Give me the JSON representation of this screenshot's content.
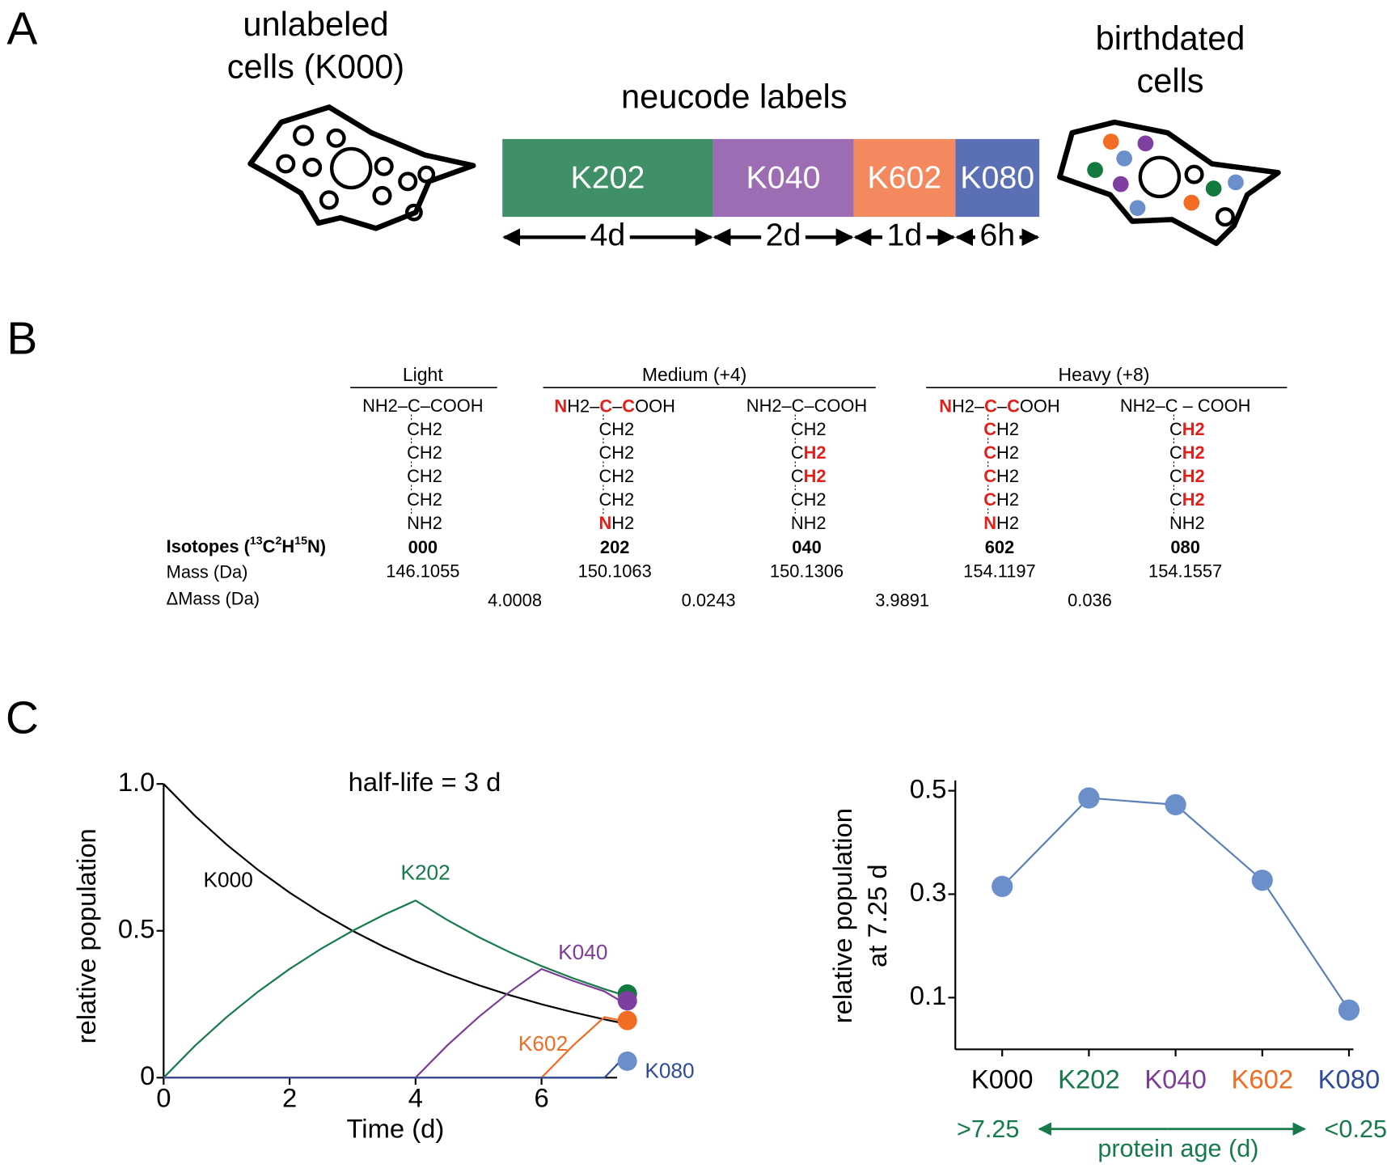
{
  "panel_labels": [
    "A",
    "B",
    "C"
  ],
  "panel_a": {
    "left_label": [
      "unlabeled",
      "cells (K000)"
    ],
    "center_title": "neucode labels",
    "right_label": [
      "birthdated",
      "cells"
    ],
    "segments": [
      {
        "label": "K202",
        "duration": "4d",
        "color": "#3f8f67"
      },
      {
        "label": "K040",
        "duration": "2d",
        "color": "#9d6db4"
      },
      {
        "label": "K602",
        "duration": "1d",
        "color": "#f4895f"
      },
      {
        "label": "K080",
        "duration": "6h",
        "color": "#5b6fb5"
      }
    ]
  },
  "panel_b": {
    "highlight_color": "#e0201b",
    "groups": [
      {
        "label": "Light"
      },
      {
        "label": "Medium (+4)"
      },
      {
        "label": "Heavy (+8)"
      }
    ],
    "structures": [
      {
        "lines": [
          "NH2–C–COOH",
          "CH2",
          "CH2",
          "CH2",
          "CH2",
          "NH2"
        ]
      },
      {
        "lines": [
          [
            {
              "text": "N"
            },
            "H2–",
            {
              "text": "C"
            },
            "–",
            {
              "text": "C"
            },
            "OOH"
          ],
          "CH2",
          "CH2",
          "CH2",
          "CH2",
          [
            {
              "text": "N"
            },
            "H2"
          ]
        ]
      },
      {
        "lines": [
          "NH2–C–COOH",
          "CH2",
          [
            "C",
            {
              "text": "H2"
            }
          ],
          [
            "C",
            {
              "text": "H2"
            }
          ],
          "CH2",
          "NH2"
        ]
      },
      {
        "lines": [
          [
            {
              "text": "N"
            },
            "H2–",
            {
              "text": "C"
            },
            "–",
            {
              "text": "C"
            },
            "OOH"
          ],
          [
            {
              "text": "C"
            },
            "H2"
          ],
          [
            {
              "text": "C"
            },
            "H2"
          ],
          [
            {
              "text": "C"
            },
            "H2"
          ],
          [
            {
              "text": "C"
            },
            "H2"
          ],
          [
            {
              "text": "N"
            },
            "H2"
          ]
        ]
      },
      {
        "lines": [
          "NH2–C – COOH",
          [
            "C",
            {
              "text": "H2"
            }
          ],
          [
            "C",
            {
              "text": "H2"
            }
          ],
          [
            "C",
            {
              "text": "H2"
            }
          ],
          [
            "C",
            {
              "text": "H2"
            }
          ],
          "NH2"
        ]
      }
    ],
    "isotopes_label": [
      "Isotopes (",
      {
        "sup": "13"
      },
      "C",
      {
        "sup": "2"
      },
      "H",
      {
        "sup": "15"
      },
      "N)"
    ],
    "isotopes": [
      "000",
      "202",
      "040",
      "602",
      "080"
    ],
    "mass_label": "Mass (Da)",
    "mass": [
      146.1055,
      150.1063,
      150.1306,
      154.1197,
      154.1557
    ],
    "delta_mass_label": "ΔMass (Da)",
    "delta_mass": [
      4.0008,
      0.0243,
      3.9891,
      0.036
    ]
  },
  "chart_data": [
    {
      "type": "line",
      "annotation": "half-life = 3 d",
      "xlabel": "Time (d)",
      "ylabel": "relative population",
      "x": [
        0,
        0.5,
        1,
        1.5,
        2,
        2.5,
        3,
        3.5,
        4,
        4.5,
        5,
        5.5,
        6,
        6.5,
        7,
        7.25
      ],
      "xlim": [
        0,
        7.2
      ],
      "ylim": [
        0,
        1
      ],
      "xticks": [
        0,
        2,
        4,
        6
      ],
      "yticks": [
        0,
        0.5,
        {
          "value": 1,
          "label": "1.0"
        }
      ],
      "series": [
        {
          "name": "K000",
          "color": "#000000",
          "end_marker": false,
          "values": [
            1,
            0.8909,
            0.7937,
            0.7071,
            0.63,
            0.5612,
            0.5,
            0.4454,
            0.3969,
            0.3536,
            0.315,
            0.2806,
            0.25,
            0.2227,
            0.1984,
            0.1873
          ]
        },
        {
          "name": "K202",
          "color": "#167a4a",
          "end_marker": true,
          "marker_color": "#127a3e",
          "values": [
            0,
            0.1091,
            0.2063,
            0.2929,
            0.37,
            0.4388,
            0.5,
            0.5546,
            0.6031,
            0.5373,
            0.4787,
            0.4265,
            0.38,
            0.3385,
            0.3016,
            0.2847
          ]
        },
        {
          "name": "K040",
          "color": "#7d3c98",
          "end_marker": true,
          "marker_color": "#7f3fa0",
          "values": [
            0,
            0,
            0,
            0,
            0,
            0,
            0,
            0,
            0,
            0.1091,
            0.2063,
            0.2929,
            0.37,
            0.3296,
            0.2937,
            0.2616
          ]
        },
        {
          "name": "K602",
          "color": "#f26b22",
          "end_marker": true,
          "marker_color": "#f26c23",
          "values": [
            0,
            0,
            0,
            0,
            0,
            0,
            0,
            0,
            0,
            0,
            0,
            0,
            0,
            0.1091,
            0.2063,
            0.1947
          ]
        },
        {
          "name": "K080",
          "color": "#2e4b9b",
          "end_marker": true,
          "marker_color": "#6b8fcb",
          "values": [
            0,
            0,
            0,
            0,
            0,
            0,
            0,
            0,
            0,
            0,
            0,
            0,
            0,
            0,
            0,
            0.0561
          ]
        }
      ]
    },
    {
      "type": "line",
      "ylabel": [
        "relative population",
        "at 7.25 d"
      ],
      "categories": [
        "K000",
        "K202",
        "K040",
        "K602",
        "K080"
      ],
      "category_colors": [
        "#000000",
        "#167a4a",
        "#7d3c98",
        "#f26b22",
        "#2e4b9b"
      ],
      "values": [
        0.315,
        0.486,
        0.473,
        0.327,
        0.076
      ],
      "color": "#5a80b8",
      "marker_color": "#6b8fcb",
      "ylim": [
        0,
        0.52
      ],
      "yticks": [
        0.1,
        0.3,
        0.5
      ],
      "annotations": [
        ">7.25",
        "protein age (d)",
        "<0.25"
      ],
      "annotation_color": "#167a4a"
    }
  ]
}
